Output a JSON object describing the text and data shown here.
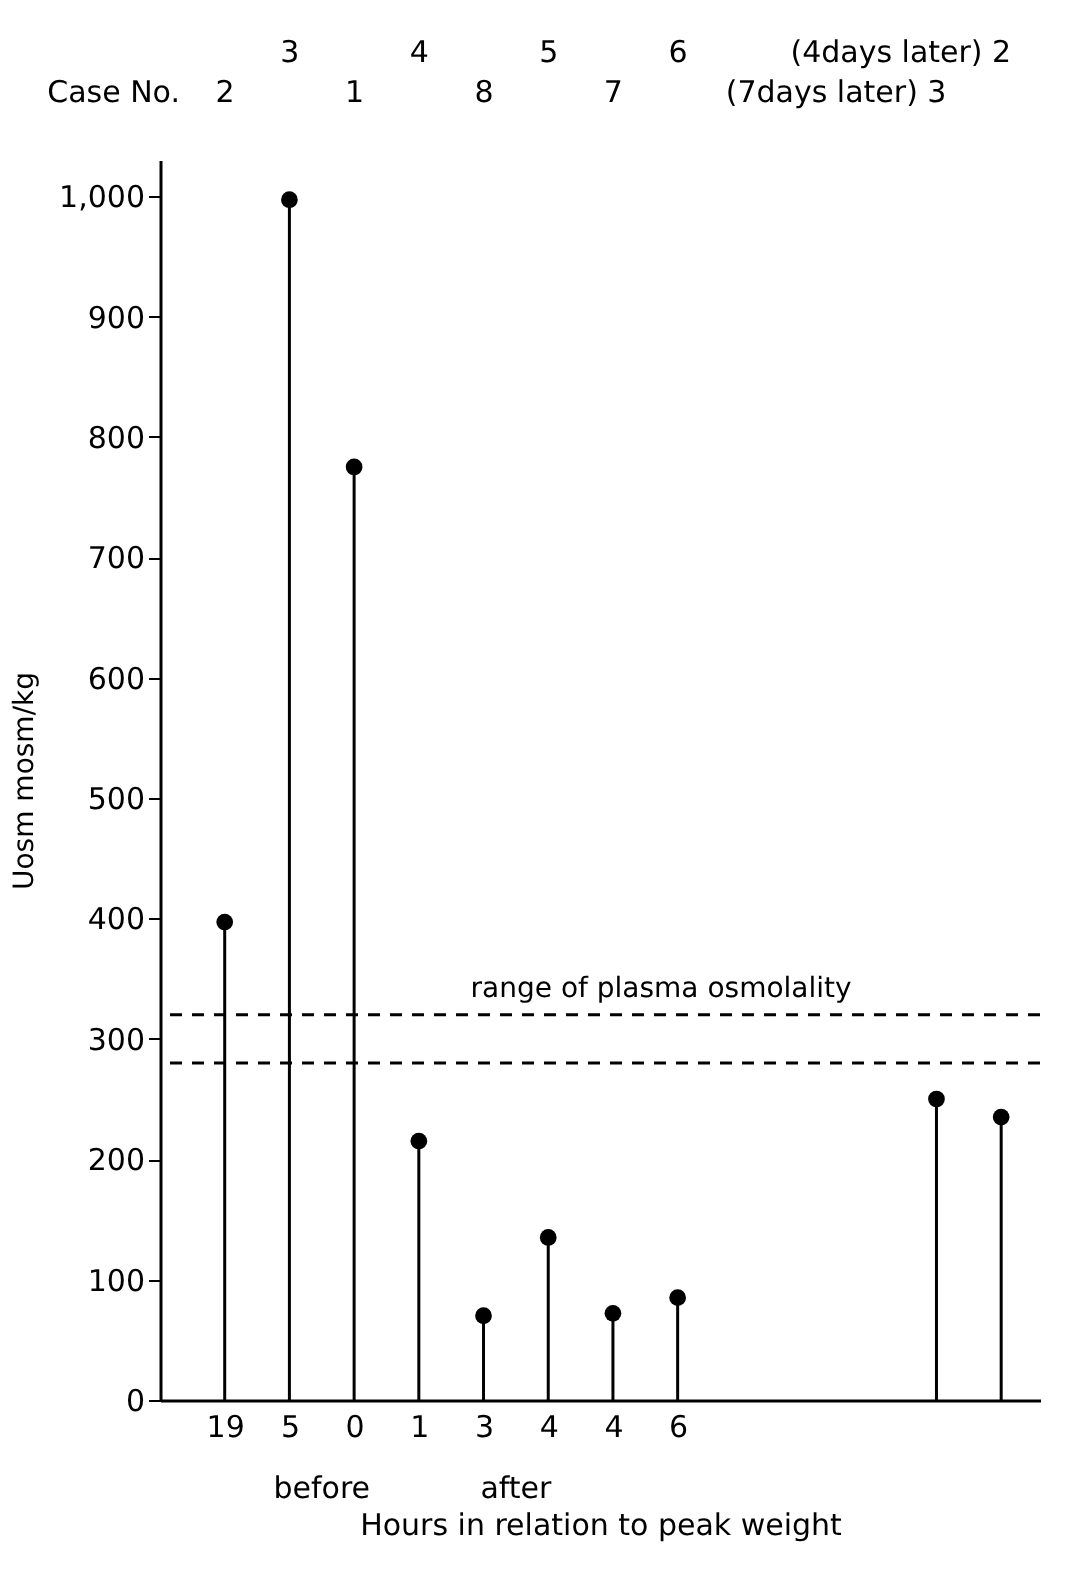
{
  "chart_data": {
    "type": "lollipop",
    "xlabel": "Hours in relation to peak weight",
    "ylabel": "Uosm mosm/kg",
    "categories": [
      "19",
      "5",
      "0",
      "1",
      "3",
      "4",
      "4",
      "6",
      null,
      null,
      null,
      null,
      null
    ],
    "values": [
      397,
      997,
      775,
      215,
      70,
      135,
      72,
      85,
      null,
      null,
      null,
      250,
      235
    ],
    "color": "#000000",
    "marker": "circle",
    "ylim": [
      0,
      1030
    ],
    "yticks": [
      0,
      100,
      200,
      300,
      400,
      500,
      600,
      700,
      800,
      900,
      {
        "value": 1000,
        "label": "1,000"
      }
    ],
    "ref_lines": [
      {
        "axis": "y",
        "value": 320,
        "label": "range of plasma osmolality",
        "line_style": "dashed"
      },
      {
        "axis": "y",
        "value": 280,
        "line_style": "dashed"
      }
    ],
    "annotations": [
      "Case No.",
      "2",
      "3",
      "1",
      "4",
      "8",
      "5",
      "7",
      "6",
      "(7days later) 3",
      "(4days later) 2",
      "before",
      "after"
    ]
  }
}
